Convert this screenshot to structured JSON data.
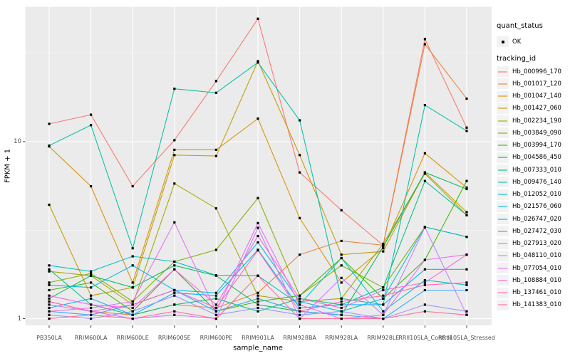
{
  "chart_data": {
    "type": "line",
    "title": "",
    "xlabel": "sample_name",
    "ylabel": "FPKM + 1",
    "y_scale": "log10",
    "ylim": [
      0.92,
      57.8
    ],
    "grid": true,
    "style": {
      "panel_bg": "#EBEBEB",
      "grid_color": "#FFFFFF",
      "point_color": "#000000",
      "tick_color": "#333333",
      "tick_label_color": "#4D4D4D",
      "legend_key_bg": "#F2F2F2"
    },
    "x_categories": [
      "PB350LA",
      "RRIM600LA",
      "RRIM600LE",
      "RRIM600SE",
      "RRIM600PE",
      "RRIM901LA",
      "RRIM928BA",
      "RRIM928LA",
      "RRIM928LE",
      "RRII105LA_Control",
      "RRII105LA_Stressed"
    ],
    "y_ticks": [
      {
        "label": "1",
        "value": 1
      },
      {
        "label": "10",
        "value": 10
      }
    ],
    "y_minor_values": [
      3.162,
      31.62
    ],
    "legend": {
      "position": "right",
      "quant_title": "quant_status",
      "quant_items": [
        {
          "label": "OK",
          "marker": "black-point"
        }
      ],
      "series_title": "tracking_id"
    },
    "series": [
      {
        "id": "Hb_000996_170",
        "color": "#F8766D",
        "values": [
          12.6,
          14.2,
          5.6,
          10.2,
          22,
          49.5,
          6.7,
          4.1,
          2.6,
          38,
          12
        ]
      },
      {
        "id": "Hb_001017_120",
        "color": "#EA8331",
        "values": [
          1.25,
          1.1,
          1.05,
          1.2,
          1.15,
          1.4,
          2.3,
          2.75,
          2.6,
          35.5,
          17.5
        ]
      },
      {
        "id": "Hb_001047_140",
        "color": "#D89000",
        "values": [
          9.4,
          5.6,
          1.6,
          9.0,
          9.0,
          13.5,
          3.7,
          1.6,
          2.5,
          8.6,
          5.5
        ]
      },
      {
        "id": "Hb_001427_060",
        "color": "#C09B00",
        "values": [
          4.4,
          1.35,
          1.5,
          8.4,
          8.3,
          28.5,
          8.4,
          2.3,
          2.4,
          6.7,
          4.0
        ]
      },
      {
        "id": "Hb_002234_190",
        "color": "#A3A500",
        "values": [
          1.85,
          1.75,
          1.2,
          5.8,
          4.2,
          1.35,
          1.25,
          1.3,
          2.65,
          6.6,
          3.85
        ]
      },
      {
        "id": "Hb_003849_090",
        "color": "#7CAE00",
        "values": [
          1.6,
          1.8,
          1.25,
          2.1,
          2.45,
          4.8,
          1.35,
          2.0,
          1.5,
          3.3,
          2.9
        ]
      },
      {
        "id": "Hb_003994_170",
        "color": "#39B600",
        "values": [
          1.45,
          1.6,
          1.1,
          1.9,
          1.1,
          1.25,
          1.35,
          2.2,
          1.3,
          2.15,
          6.0
        ]
      },
      {
        "id": "Hb_004586_450",
        "color": "#00BB4E",
        "values": [
          1.3,
          1.75,
          1.5,
          2.0,
          1.75,
          1.2,
          1.1,
          1.05,
          2.55,
          6.7,
          5.4
        ]
      },
      {
        "id": "Hb_007333_010",
        "color": "#00BF7D",
        "values": [
          1.9,
          1.2,
          1.05,
          1.2,
          1.3,
          1.1,
          1.3,
          1.2,
          1.5,
          6.0,
          3.85
        ]
      },
      {
        "id": "Hb_009476_140",
        "color": "#00C1A3",
        "values": [
          9.5,
          12.4,
          2.5,
          19.9,
          18.9,
          28,
          13.2,
          1.3,
          1.2,
          16.1,
          11.5
        ]
      },
      {
        "id": "Hb_012052_010",
        "color": "#00BFC4",
        "values": [
          2.0,
          1.85,
          2.25,
          2.1,
          1.76,
          1.75,
          1.2,
          2.2,
          1.1,
          1.65,
          1.55
        ]
      },
      {
        "id": "Hb_021576_060",
        "color": "#00BAE0",
        "values": [
          1.55,
          1.5,
          2.0,
          1.45,
          1.4,
          2.7,
          1.25,
          1.1,
          1.3,
          3.3,
          2.9
        ]
      },
      {
        "id": "Hb_026747_020",
        "color": "#00B0F6",
        "values": [
          1.15,
          1.3,
          1.05,
          1.4,
          1.35,
          2.45,
          1.15,
          1.2,
          1.2,
          1.9,
          1.9
        ]
      },
      {
        "id": "Hb_027472_030",
        "color": "#35A2FF",
        "values": [
          1.1,
          1.05,
          1.2,
          1.45,
          1.1,
          1.3,
          1.1,
          1.05,
          1.0,
          1.45,
          1.45
        ]
      },
      {
        "id": "Hb_027913_020",
        "color": "#9590FF",
        "values": [
          1.05,
          1.0,
          1.1,
          1.35,
          1.05,
          1.15,
          1.05,
          1.1,
          1.0,
          1.2,
          1.1
        ]
      },
      {
        "id": "Hb_048110_010",
        "color": "#C77CFF",
        "values": [
          1.2,
          1.1,
          1.0,
          1.05,
          1.0,
          3.26,
          1.0,
          1.7,
          1.05,
          3.28,
          1.05
        ]
      },
      {
        "id": "Hb_077054_010",
        "color": "#E76BF3",
        "values": [
          1.1,
          1.15,
          1.25,
          3.5,
          1.1,
          3.47,
          1.2,
          1.0,
          1.05,
          2.15,
          2.3
        ]
      },
      {
        "id": "Hb_108884_010",
        "color": "#FA62DB",
        "values": [
          1.35,
          1.2,
          1.15,
          1.9,
          1.2,
          2.93,
          1.3,
          1.15,
          1.45,
          1.6,
          2.3
        ]
      },
      {
        "id": "Hb_137461_010",
        "color": "#FF62BC",
        "values": [
          1.25,
          1.1,
          1.2,
          1.45,
          1.15,
          2.43,
          1.1,
          1.25,
          1.35,
          1.55,
          1.6
        ]
      },
      {
        "id": "Hb_141383_010",
        "color": "#FF6A98",
        "values": [
          1.0,
          1.05,
          1.0,
          1.1,
          1.0,
          1.75,
          1.0,
          1.0,
          1.0,
          1.1,
          1.05
        ]
      }
    ]
  }
}
